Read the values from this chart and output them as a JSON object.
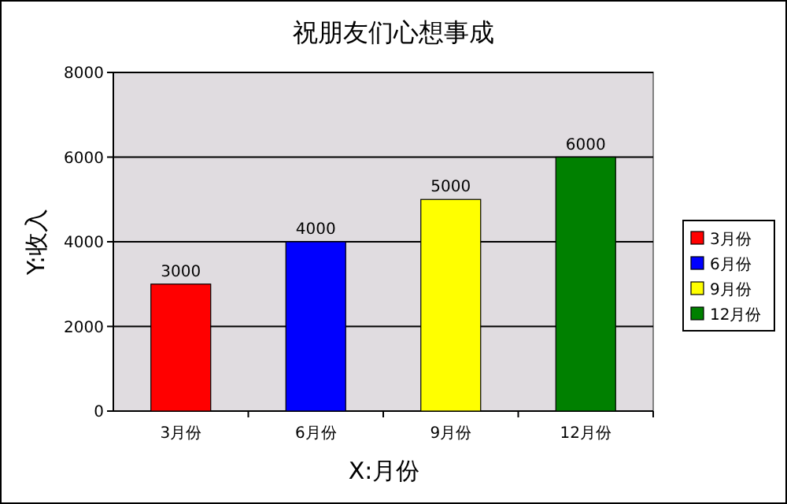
{
  "chart_data": {
    "type": "bar",
    "title": "祝朋友们心想事成",
    "xlabel": "X:月份",
    "ylabel": "Y:收入",
    "categories": [
      "3月份",
      "6月份",
      "9月份",
      "12月份"
    ],
    "series": [
      {
        "name": "3月份",
        "color": "#ff0000",
        "values": [
          3000,
          null,
          null,
          null
        ]
      },
      {
        "name": "6月份",
        "color": "#0000ff",
        "values": [
          null,
          4000,
          null,
          null
        ]
      },
      {
        "name": "9月份",
        "color": "#ffff00",
        "values": [
          null,
          null,
          5000,
          null
        ]
      },
      {
        "name": "12月份",
        "color": "#008000",
        "values": [
          null,
          null,
          null,
          6000
        ]
      }
    ],
    "ylim": [
      0,
      8000
    ],
    "yticks": [
      0,
      2000,
      4000,
      6000,
      8000
    ],
    "grid": "y",
    "legend": "right",
    "data_labels": true
  }
}
